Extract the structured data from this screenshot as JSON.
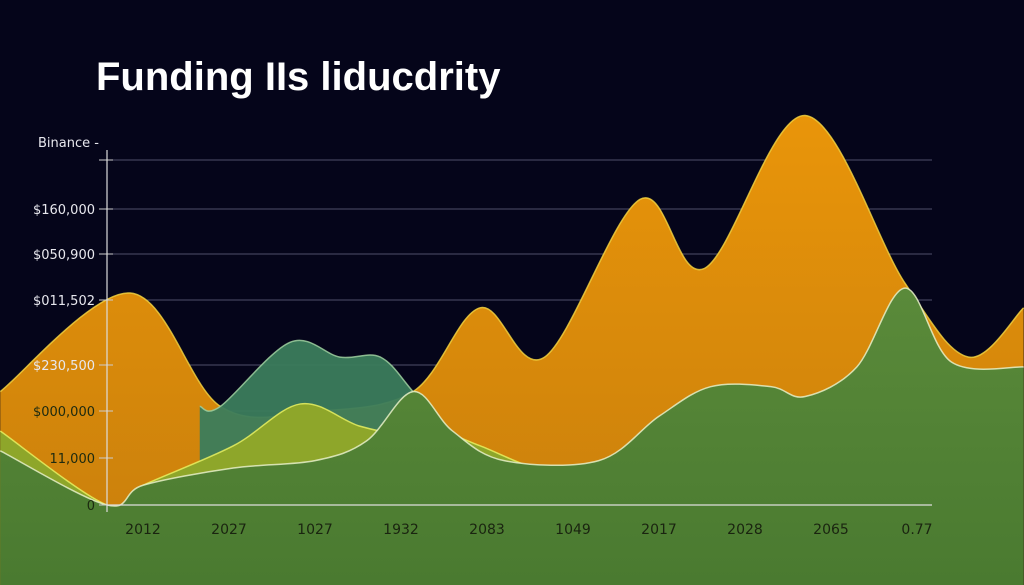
{
  "chart_data": {
    "type": "area",
    "title": "Funding IIs liducdrity",
    "ylabel": "Binance -",
    "xlabel": "",
    "categories": [
      "2012",
      "2027",
      "1027",
      "1932",
      "2083",
      "1049",
      "2017",
      "2028",
      "2065",
      "0.77"
    ],
    "y_tick_labels": [
      "0",
      "11,000",
      "$000,000",
      "$230,500",
      "$011,502",
      "$050,900",
      "$160,000",
      ""
    ],
    "grid": true,
    "ylim": [
      0,
      7
    ],
    "series": [
      {
        "color": "#e39310",
        "points": [
          [
            -1.66,
            2.3
          ],
          [
            -0.15,
            4.3
          ],
          [
            0.9,
            2.0
          ],
          [
            2.0,
            1.9
          ],
          [
            3.14,
            2.3
          ],
          [
            3.92,
            4.0
          ],
          [
            4.67,
            3.0
          ],
          [
            5.78,
            6.2
          ],
          [
            6.53,
            4.8
          ],
          [
            7.7,
            7.9
          ],
          [
            8.86,
            4.5
          ],
          [
            9.6,
            3.0
          ],
          [
            10.24,
            4.0
          ]
        ]
      },
      {
        "color": "#3b7c5c",
        "points": [
          [
            0.66,
            2.0
          ],
          [
            0.9,
            2.0
          ],
          [
            1.71,
            3.3
          ],
          [
            2.29,
            3.0
          ],
          [
            2.76,
            3.0
          ],
          [
            3.14,
            2.3
          ],
          [
            3.57,
            1.4
          ],
          [
            4.15,
            1.0
          ]
        ]
      },
      {
        "color": "#8ea62a",
        "points": [
          [
            -1.66,
            1.5
          ],
          [
            -0.42,
            0
          ],
          [
            0,
            0.4
          ],
          [
            1.05,
            1.2
          ],
          [
            1.83,
            2.05
          ],
          [
            2.52,
            1.6
          ],
          [
            3.14,
            1.4
          ],
          [
            3.45,
            1.5
          ],
          [
            3.92,
            1.2
          ],
          [
            4.67,
            0.7
          ],
          [
            5.28,
            0.8
          ],
          [
            5.9,
            1.2
          ]
        ]
      },
      {
        "color": "#4f7e34",
        "points": [
          [
            -1.66,
            1.1
          ],
          [
            -0.42,
            0
          ],
          [
            0,
            0.4
          ],
          [
            1.05,
            0.75
          ],
          [
            2.0,
            0.9
          ],
          [
            2.6,
            1.3
          ],
          [
            3.14,
            2.3
          ],
          [
            3.6,
            1.5
          ],
          [
            4.2,
            0.9
          ],
          [
            5.3,
            0.9
          ],
          [
            6.0,
            1.8
          ],
          [
            6.6,
            2.4
          ],
          [
            7.3,
            2.4
          ],
          [
            7.7,
            2.2
          ],
          [
            8.3,
            2.8
          ],
          [
            8.86,
            4.4
          ],
          [
            9.4,
            2.9
          ],
          [
            10.24,
            2.8
          ]
        ]
      }
    ]
  }
}
